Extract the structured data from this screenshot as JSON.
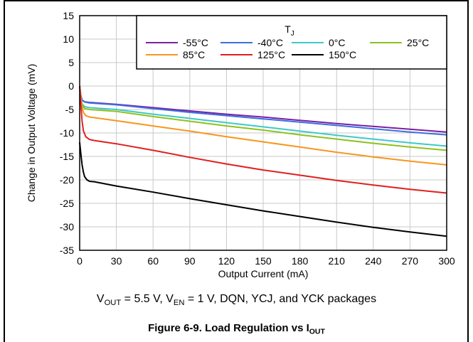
{
  "chart_data": {
    "type": "line",
    "xlabel": "Output Current (mA)",
    "ylabel": "Change in Output Voltage (mV)",
    "xlim": [
      0,
      300
    ],
    "ylim": [
      -35,
      15
    ],
    "x_ticks": [
      "0",
      "30",
      "60",
      "90",
      "120",
      "150",
      "180",
      "210",
      "240",
      "270",
      "300"
    ],
    "y_ticks": [
      "15",
      "10",
      "5",
      "0",
      "-5",
      "-10",
      "-15",
      "-20",
      "-25",
      "-30",
      "-35"
    ],
    "grid": true,
    "legend": {
      "title": "T",
      "title_subscript": "J",
      "placement": "top-right"
    },
    "series": [
      {
        "name": "-55°C",
        "color": "#7b1fa2",
        "x": [
          0,
          1,
          2,
          4,
          8,
          30,
          60,
          90,
          120,
          150,
          180,
          210,
          240,
          270,
          300
        ],
        "y": [
          0,
          -2.0,
          -3.0,
          -3.35,
          -3.5,
          -3.9,
          -4.6,
          -5.3,
          -6.0,
          -6.6,
          -7.3,
          -8.0,
          -8.6,
          -9.2,
          -9.8
        ]
      },
      {
        "name": "-40°C",
        "color": "#3b6fe0",
        "x": [
          0,
          1,
          2,
          4,
          8,
          30,
          60,
          90,
          120,
          150,
          180,
          210,
          240,
          270,
          300
        ],
        "y": [
          0,
          -2.0,
          -3.0,
          -3.4,
          -3.6,
          -4.0,
          -4.8,
          -5.6,
          -6.3,
          -7.0,
          -7.7,
          -8.4,
          -9.1,
          -9.8,
          -10.4
        ]
      },
      {
        "name": "0°C",
        "color": "#3fc8c8",
        "x": [
          0,
          1,
          2,
          4,
          8,
          30,
          60,
          90,
          120,
          150,
          180,
          210,
          240,
          270,
          300
        ],
        "y": [
          0,
          -2.5,
          -3.8,
          -4.4,
          -4.6,
          -5.0,
          -6.0,
          -6.9,
          -7.8,
          -8.7,
          -9.6,
          -10.5,
          -11.3,
          -12.1,
          -12.8
        ]
      },
      {
        "name": "25°C",
        "color": "#8dc21f",
        "x": [
          0,
          1,
          2,
          4,
          8,
          30,
          60,
          90,
          120,
          150,
          180,
          210,
          240,
          270,
          300
        ],
        "y": [
          0,
          -2.5,
          -4.0,
          -4.8,
          -5.0,
          -5.4,
          -6.5,
          -7.5,
          -8.5,
          -9.4,
          -10.4,
          -11.3,
          -12.2,
          -13.0,
          -13.7
        ]
      },
      {
        "name": "85°C",
        "color": "#f7961e",
        "x": [
          0,
          1,
          2,
          3,
          5,
          8,
          30,
          60,
          90,
          120,
          150,
          180,
          210,
          240,
          270,
          300
        ],
        "y": [
          0,
          -2.5,
          -4.5,
          -5.6,
          -6.3,
          -6.6,
          -7.4,
          -8.5,
          -9.6,
          -10.8,
          -11.9,
          -13.0,
          -14.1,
          -15.1,
          -16.0,
          -16.8
        ]
      },
      {
        "name": "125°C",
        "color": "#e0201f",
        "x": [
          0,
          1,
          2,
          3,
          5,
          8,
          12,
          30,
          60,
          90,
          120,
          150,
          180,
          210,
          240,
          270,
          300
        ],
        "y": [
          0,
          -4.0,
          -7.5,
          -9.5,
          -10.8,
          -11.4,
          -11.6,
          -12.3,
          -13.7,
          -15.2,
          -16.6,
          -17.9,
          -19.0,
          -20.1,
          -21.1,
          -22.0,
          -22.8
        ]
      },
      {
        "name": "150°C",
        "color": "#000000",
        "x": [
          0,
          1,
          2,
          3,
          4,
          6,
          8,
          12,
          30,
          60,
          90,
          120,
          150,
          180,
          210,
          240,
          270,
          300
        ],
        "y": [
          -12.0,
          -14.5,
          -16.8,
          -18.3,
          -19.3,
          -20.0,
          -20.3,
          -20.4,
          -21.3,
          -22.6,
          -24.0,
          -25.3,
          -26.6,
          -27.8,
          -29.0,
          -30.1,
          -31.1,
          -32.0
        ]
      }
    ]
  },
  "caption": {
    "v_out": "V",
    "v_out_sub": "OUT",
    "v_out_value": " = 5.5 V, V",
    "v_en_sub": "EN",
    "rest": " = 1 V, DQN, YCJ, and YCK packages"
  },
  "figure": {
    "title": "Figure 6-9. Load Regulation vs I",
    "title_sub": "OUT"
  }
}
